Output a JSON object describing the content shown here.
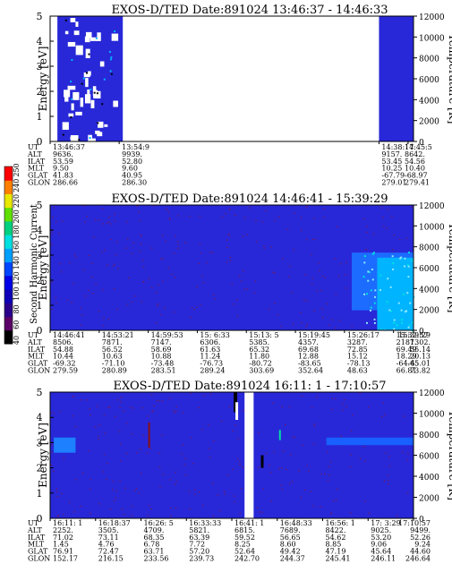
{
  "chart_data": [
    {
      "type": "heatmap",
      "title": "EXOS-D/TED   Date:891024   13:46:37 - 14:46:33",
      "ylabel": "Energy [eV]",
      "y2label": "Temperature [K]",
      "ylim": [
        0,
        5
      ],
      "y2lim": [
        0,
        12000
      ],
      "yticks": [
        "0",
        "1",
        "2",
        "3",
        "4",
        "5"
      ],
      "y2ticks": [
        "0",
        "2000",
        "4000",
        "6000",
        "8000",
        "10000",
        "12000"
      ],
      "row_labels": [
        "UT",
        "ALT",
        "ILAT",
        "MLT",
        "GLAT",
        "GLON"
      ],
      "columns": [
        {
          "pos": 0.0,
          "values": [
            "13:46:37",
            "9636.",
            "53.59",
            "9.50",
            "41.83",
            "286.66"
          ]
        },
        {
          "pos": 0.19,
          "values": [
            "13:54:9",
            "9939.",
            "52.80",
            "9.60",
            "40.95",
            "286.30"
          ]
        },
        {
          "pos": 0.905,
          "values": [
            "14:38:17",
            "9157.",
            "53.45",
            "10.25",
            "-67.79",
            "279.01"
          ]
        },
        {
          "pos": 0.985,
          "values": [
            "14:45:5",
            "8642.",
            "54.56",
            "10.40",
            "-68.97",
            "279.41"
          ]
        }
      ],
      "data_spans": [
        [
          0.02,
          0.2
        ],
        [
          0.905,
          1.0
        ]
      ]
    },
    {
      "type": "heatmap",
      "title": "EXOS-D/TED   Date:891024   14:46:41 - 15:39:29",
      "ylabel": "Energy [eV]",
      "y2label": "Temperature [K]",
      "ylim": [
        0,
        5
      ],
      "y2lim": [
        0,
        12000
      ],
      "yticks": [
        "0",
        "1",
        "2",
        "3",
        "4",
        "5"
      ],
      "y2ticks": [
        "0",
        "2000",
        "4000",
        "6000",
        "8000",
        "10000",
        "12000"
      ],
      "row_labels": [
        "UT",
        "ALT",
        "ILAT",
        "MLT",
        "GLAT",
        "GLON"
      ],
      "columns": [
        {
          "pos": 0.0,
          "values": [
            "14:46:41",
            "8506.",
            "54.88",
            "10.44",
            "-69.32",
            "279.59"
          ]
        },
        {
          "pos": 0.135,
          "values": [
            "14:53:21",
            "7871.",
            "56.52",
            "10.63",
            "-71.10",
            "280.89"
          ]
        },
        {
          "pos": 0.27,
          "values": [
            "14:59:53",
            "7147.",
            "58.69",
            "10.88",
            "-73.48",
            "283.51"
          ]
        },
        {
          "pos": 0.405,
          "values": [
            "15: 6:33",
            "6306.",
            "61.63",
            "11.24",
            "-76.73",
            "289.24"
          ]
        },
        {
          "pos": 0.54,
          "values": [
            "15:13: 5",
            "5385.",
            "65.32",
            "11.80",
            "-80.72",
            "303.69"
          ]
        },
        {
          "pos": 0.675,
          "values": [
            "15:19:45",
            "4357.",
            "69.68",
            "12.88",
            "-83.65",
            "352.64"
          ]
        },
        {
          "pos": 0.81,
          "values": [
            "15:26:17",
            "3287.",
            "72.85",
            "15.12",
            "-78.13",
            "48.63"
          ]
        },
        {
          "pos": 0.945,
          "values": [
            "15:32:57",
            "2187.",
            "69.49",
            "18.29",
            "-64.65",
            "66.81"
          ]
        },
        {
          "pos": 1.0,
          "values": [
            "15:39:29",
            "1302.",
            "55.14",
            "20.13",
            "-45.01",
            "73.82"
          ]
        }
      ]
    },
    {
      "type": "heatmap",
      "title": "EXOS-D/TED   Date:891024   16:11: 1 - 17:10:57",
      "ylabel": "Energy [eV]",
      "y2label": "Temperature [K]",
      "ylim": [
        0,
        5
      ],
      "y2lim": [
        0,
        12000
      ],
      "yticks": [
        "0",
        "1",
        "2",
        "3",
        "4",
        "5"
      ],
      "y2ticks": [
        "0",
        "2000",
        "4000",
        "6000",
        "8000",
        "10000",
        "12000"
      ],
      "row_labels": [
        "UT",
        "ALT",
        "ILAT",
        "MLT",
        "GLAT",
        "GLON"
      ],
      "columns": [
        {
          "pos": 0.0,
          "values": [
            "16:11: 1",
            "2252.",
            "71.02",
            "1.45",
            "76.91",
            "152.17"
          ]
        },
        {
          "pos": 0.125,
          "values": [
            "16:18:37",
            "3505.",
            "73.11",
            "4.76",
            "72.47",
            "216.15"
          ]
        },
        {
          "pos": 0.25,
          "values": [
            "16:26: 5",
            "4709.",
            "68.35",
            "6.78",
            "63.71",
            "233.56"
          ]
        },
        {
          "pos": 0.375,
          "values": [
            "16:33:33",
            "5821.",
            "63.39",
            "7.72",
            "57.20",
            "239.73"
          ]
        },
        {
          "pos": 0.5,
          "values": [
            "16:41: 1",
            "6815.",
            "59.52",
            "8.25",
            "52.64",
            "242.70"
          ]
        },
        {
          "pos": 0.625,
          "values": [
            "16:48:33",
            "7689.",
            "56.65",
            "8.60",
            "49.42",
            "244.37"
          ]
        },
        {
          "pos": 0.75,
          "values": [
            "16:56: 1",
            "8422.",
            "54.62",
            "8.85",
            "47.19",
            "245.41"
          ]
        },
        {
          "pos": 0.875,
          "values": [
            "17: 3:29",
            "9025.",
            "53.20",
            "9.06",
            "45.64",
            "246.11"
          ]
        },
        {
          "pos": 1.0,
          "values": [
            "17:10:57",
            "9499.",
            "52.26",
            "9.24",
            "44.60",
            "246.64"
          ]
        }
      ]
    }
  ],
  "colorbar": {
    "label": "Second Harmonic Current",
    "ticks": [
      "40",
      "60",
      "80",
      "100",
      "120",
      "140",
      "160",
      "180",
      "200",
      "220",
      "240",
      "250"
    ],
    "colors": [
      "#000000",
      "#5a0066",
      "#2a008a",
      "#1000b8",
      "#0000e6",
      "#0046ff",
      "#00a0ff",
      "#00e0e0",
      "#00d080",
      "#60e000",
      "#e8e800",
      "#ff8000",
      "#ff0000"
    ],
    "nan_color": "#ffffff"
  },
  "colors": {
    "background": "#2828d8",
    "speckle": "#6a1a6a",
    "high": "#00b4ff",
    "gap": "#ffffff"
  }
}
